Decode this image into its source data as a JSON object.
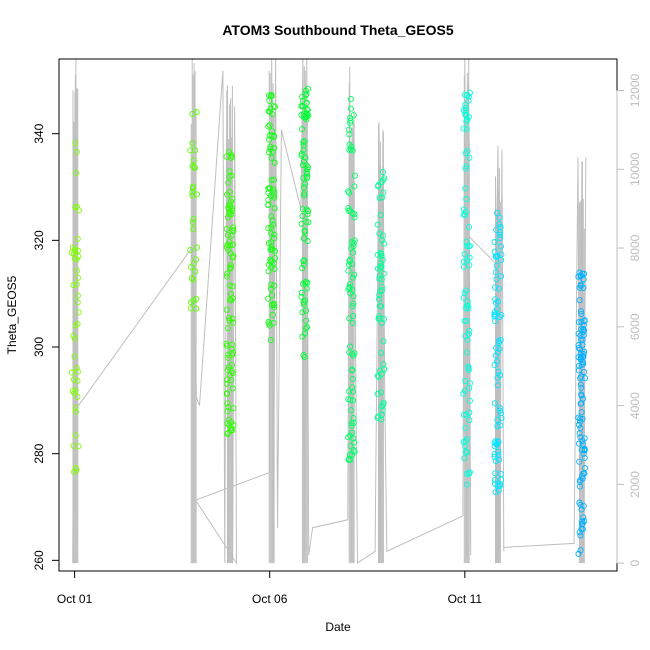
{
  "chart_data": {
    "type": "scatter",
    "title": "ATOM3 Southbound Theta_GEOS5",
    "xlabel": "Date",
    "ylabel": "Theta_GEOS5",
    "x_ticks": [
      {
        "label": "Oct 01",
        "day": 1.0
      },
      {
        "label": "Oct 06",
        "day": 6.0
      },
      {
        "label": "Oct 11",
        "day": 11.0
      }
    ],
    "xlim_day": [
      0.6,
      14.9
    ],
    "ylim": [
      258,
      354
    ],
    "y_ticks": [
      260,
      280,
      300,
      320,
      340
    ],
    "y2": {
      "description_free": true,
      "ylim": [
        -200,
        12800
      ],
      "ticks": [
        0,
        2000,
        4000,
        6000,
        8000,
        10000,
        12000
      ],
      "color": "#bebebe"
    },
    "colors": {
      "line": "#bebebe",
      "gradient": [
        "#7fff00",
        "#00ff00",
        "#00ff7f",
        "#00ffff",
        "#007fff"
      ]
    },
    "grid": false,
    "legend": "none",
    "legs": [
      {
        "day": 1.02,
        "theta_min": 276,
        "theta_max": 338.5,
        "alt_max": 12800,
        "color": "#80ff00",
        "n": 45
      },
      {
        "day": 4.05,
        "theta_min": 303,
        "theta_max": 347,
        "alt_max": 13100,
        "color": "#5cff00",
        "n": 30
      },
      {
        "day": 4.98,
        "theta_min": 283,
        "theta_max": 337,
        "alt_max": 12600,
        "color": "#2eff00",
        "n": 90
      },
      {
        "day": 6.05,
        "theta_min": 301,
        "theta_max": 349,
        "alt_max": 12800,
        "color": "#14ff14",
        "n": 80
      },
      {
        "day": 6.9,
        "theta_min": 298,
        "theta_max": 349,
        "alt_max": 12800,
        "color": "#00ff33",
        "n": 80
      },
      {
        "day": 8.1,
        "theta_min": 278,
        "theta_max": 348,
        "alt_max": 12600,
        "color": "#00ff66",
        "n": 80
      },
      {
        "day": 8.85,
        "theta_min": 286,
        "theta_max": 333,
        "alt_max": 11200,
        "color": "#00ff99",
        "n": 60
      },
      {
        "day": 11.05,
        "theta_min": 274,
        "theta_max": 350,
        "alt_max": 12800,
        "color": "#00ffdd",
        "n": 80
      },
      {
        "day": 11.85,
        "theta_min": 272,
        "theta_max": 326,
        "alt_max": 10600,
        "color": "#00e5ff",
        "n": 80
      },
      {
        "day": 14.0,
        "theta_min": 261,
        "theta_max": 314,
        "alt_max": 10300,
        "color": "#00b2ff",
        "n": 100
      }
    ],
    "altitude_track": [
      [
        0.95,
        0
      ],
      [
        1.02,
        12400
      ],
      [
        1.05,
        4000
      ],
      [
        1.1,
        4000
      ],
      [
        4.0,
        8000
      ],
      [
        4.08,
        6000
      ],
      [
        4.12,
        4200
      ],
      [
        4.2,
        4000
      ],
      [
        4.8,
        12500
      ],
      [
        4.85,
        0
      ],
      [
        4.9,
        12000
      ],
      [
        4.95,
        0
      ],
      [
        5.0,
        11800
      ],
      [
        5.05,
        0
      ],
      [
        5.1,
        11600
      ],
      [
        5.15,
        0
      ],
      [
        4.1,
        1600
      ],
      [
        6.0,
        2300
      ],
      [
        6.05,
        12800
      ],
      [
        6.1,
        200
      ],
      [
        6.15,
        12800
      ],
      [
        6.2,
        900
      ],
      [
        6.3,
        11000
      ],
      [
        6.8,
        9000
      ],
      [
        6.85,
        12800
      ],
      [
        6.9,
        200
      ],
      [
        6.95,
        12800
      ],
      [
        7.0,
        200
      ],
      [
        7.1,
        900
      ],
      [
        8.0,
        1100
      ],
      [
        8.05,
        12600
      ],
      [
        8.1,
        200
      ],
      [
        8.15,
        11000
      ],
      [
        8.25,
        0
      ],
      [
        8.7,
        300
      ],
      [
        8.8,
        11200
      ],
      [
        8.85,
        200
      ],
      [
        8.9,
        11000
      ],
      [
        8.95,
        4200
      ],
      [
        9.0,
        300
      ],
      [
        10.95,
        1200
      ],
      [
        11.0,
        12800
      ],
      [
        11.05,
        200
      ],
      [
        11.1,
        12800
      ],
      [
        11.15,
        200
      ],
      [
        11.1,
        8300
      ],
      [
        11.8,
        7600
      ],
      [
        11.85,
        10600
      ],
      [
        11.9,
        300
      ],
      [
        11.95,
        10500
      ],
      [
        12.0,
        300
      ],
      [
        12.0,
        400
      ],
      [
        13.8,
        500
      ],
      [
        13.9,
        10300
      ],
      [
        13.95,
        200
      ],
      [
        14.0,
        10200
      ],
      [
        14.05,
        400
      ],
      [
        14.1,
        10300
      ]
    ]
  }
}
